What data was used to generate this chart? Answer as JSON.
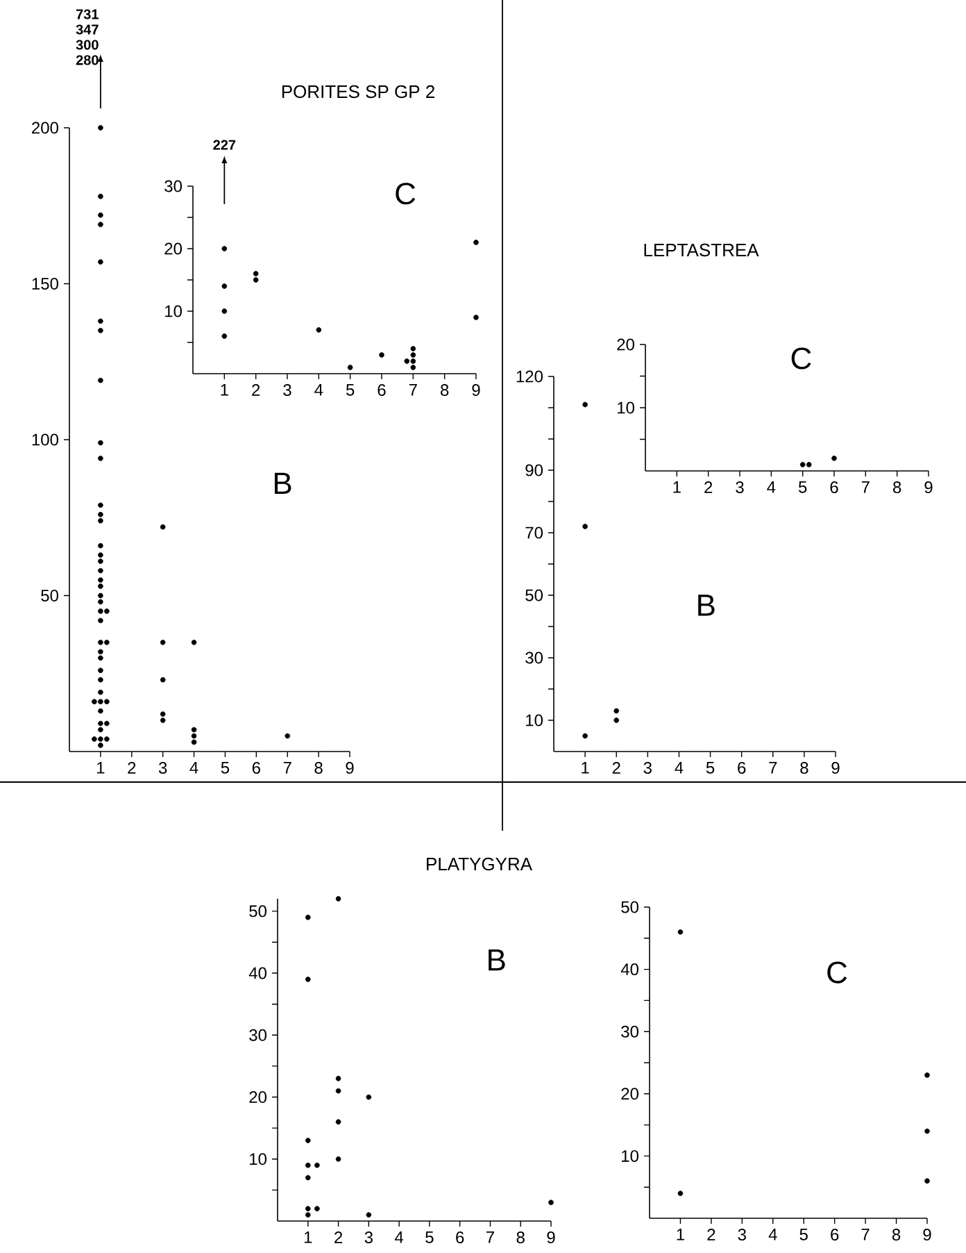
{
  "chart_data": [
    {
      "type": "scatter",
      "annotations": [
        "B",
        "731",
        "347",
        "300",
        "280"
      ],
      "color": "#000000",
      "marker": "circle",
      "xlim": [
        0,
        9
      ],
      "ylim": [
        0,
        200
      ],
      "xticks": [
        1,
        2,
        3,
        4,
        5,
        6,
        7,
        8,
        9
      ],
      "yticks": [
        50,
        100,
        150,
        200
      ],
      "x": [
        1,
        1,
        1,
        1,
        1,
        1,
        1,
        1,
        1,
        1,
        1,
        1,
        1,
        1,
        1,
        1,
        1,
        1,
        1,
        1,
        1,
        1,
        1,
        1,
        1,
        1,
        1,
        1,
        1,
        1,
        1,
        1,
        1,
        1,
        1,
        1.2,
        1.2,
        1.2,
        1.2,
        1.2,
        0.8,
        0.8,
        3,
        3,
        3,
        3,
        3,
        4,
        4,
        4,
        4,
        7
      ],
      "values": [
        200,
        178,
        172,
        169,
        157,
        138,
        135,
        119,
        99,
        94,
        79,
        76,
        74,
        66,
        63,
        61,
        58,
        55,
        53,
        50,
        48,
        45,
        42,
        35,
        32,
        30,
        26,
        23,
        19,
        16,
        13,
        9,
        7,
        4,
        2,
        45,
        35,
        16,
        9,
        4,
        16,
        4,
        72,
        35,
        23,
        12,
        10,
        35,
        7,
        5,
        3,
        5
      ]
    },
    {
      "type": "scatter",
      "title": "PORITES  SP GP 2",
      "annotations": [
        "C",
        "227"
      ],
      "color": "#000000",
      "marker": "circle",
      "xlim": [
        0,
        9
      ],
      "ylim": [
        0,
        30
      ],
      "xticks": [
        1,
        2,
        3,
        4,
        5,
        6,
        7,
        8,
        9
      ],
      "yticks": [
        {
          "value": 5,
          "label": null
        },
        10,
        {
          "value": 15,
          "label": null
        },
        20,
        {
          "value": 25,
          "label": null
        },
        30
      ],
      "x": [
        1,
        1,
        1,
        1,
        2,
        2,
        4,
        5,
        6,
        7,
        7,
        7,
        7,
        6.8,
        9,
        9
      ],
      "values": [
        20,
        14,
        10,
        6,
        16,
        15,
        7,
        1,
        3,
        4,
        3,
        2,
        1,
        2,
        21,
        9
      ]
    },
    {
      "type": "scatter",
      "annotations": [
        "B"
      ],
      "color": "#000000",
      "marker": "circle",
      "xlim": [
        0,
        9
      ],
      "ylim": [
        0,
        120
      ],
      "xticks": [
        1,
        2,
        3,
        4,
        5,
        6,
        7,
        8,
        9
      ],
      "yticks": [
        10,
        {
          "value": 20,
          "label": null
        },
        30,
        {
          "value": 40,
          "label": null
        },
        50,
        {
          "value": 60,
          "label": null
        },
        70,
        {
          "value": 80,
          "label": null
        },
        90,
        {
          "value": 100,
          "label": null
        },
        {
          "value": 110,
          "label": null
        },
        120
      ],
      "x": [
        1,
        1,
        1,
        2,
        2
      ],
      "values": [
        111,
        72,
        5,
        13,
        10
      ]
    },
    {
      "type": "scatter",
      "title": "LEPTASTREA",
      "annotations": [
        "C"
      ],
      "color": "#000000",
      "marker": "circle",
      "xlim": [
        0,
        9
      ],
      "ylim": [
        0,
        20
      ],
      "xticks": [
        1,
        2,
        3,
        4,
        5,
        6,
        7,
        8,
        9
      ],
      "yticks": [
        {
          "value": 5,
          "label": null
        },
        10,
        {
          "value": 15,
          "label": null
        },
        20
      ],
      "x": [
        5,
        5.2,
        6
      ],
      "values": [
        1,
        1,
        2
      ]
    },
    {
      "type": "scatter",
      "title": "PLATYGYRA",
      "annotations": [
        "B"
      ],
      "color": "#000000",
      "marker": "circle",
      "xlim": [
        0,
        9
      ],
      "ylim": [
        0,
        52
      ],
      "xticks": [
        1,
        2,
        3,
        4,
        5,
        6,
        7,
        8,
        9
      ],
      "yticks": [
        {
          "value": 5,
          "label": null
        },
        10,
        {
          "value": 15,
          "label": null
        },
        20,
        {
          "value": 25,
          "label": null
        },
        30,
        {
          "value": 35,
          "label": null
        },
        40,
        {
          "value": 45,
          "label": null
        },
        50
      ],
      "x": [
        1,
        1,
        1,
        1,
        1,
        1,
        1,
        1.3,
        1.3,
        2,
        2,
        2,
        2,
        2,
        3,
        3,
        9
      ],
      "values": [
        49,
        39,
        13,
        9,
        7,
        2,
        1,
        9,
        2,
        52,
        23,
        21,
        16,
        10,
        20,
        1,
        3
      ]
    },
    {
      "type": "scatter",
      "annotations": [
        "C"
      ],
      "color": "#000000",
      "marker": "circle",
      "xlim": [
        0,
        9
      ],
      "ylim": [
        0,
        50
      ],
      "xticks": [
        1,
        2,
        3,
        4,
        5,
        6,
        7,
        8,
        9
      ],
      "yticks": [
        {
          "value": 5,
          "label": null
        },
        10,
        {
          "value": 15,
          "label": null
        },
        20,
        {
          "value": 25,
          "label": null
        },
        30,
        {
          "value": 35,
          "label": null
        },
        40,
        {
          "value": 45,
          "label": null
        },
        50
      ],
      "x": [
        1,
        1,
        9,
        9,
        9
      ],
      "values": [
        46,
        4,
        23,
        14,
        6
      ]
    }
  ]
}
